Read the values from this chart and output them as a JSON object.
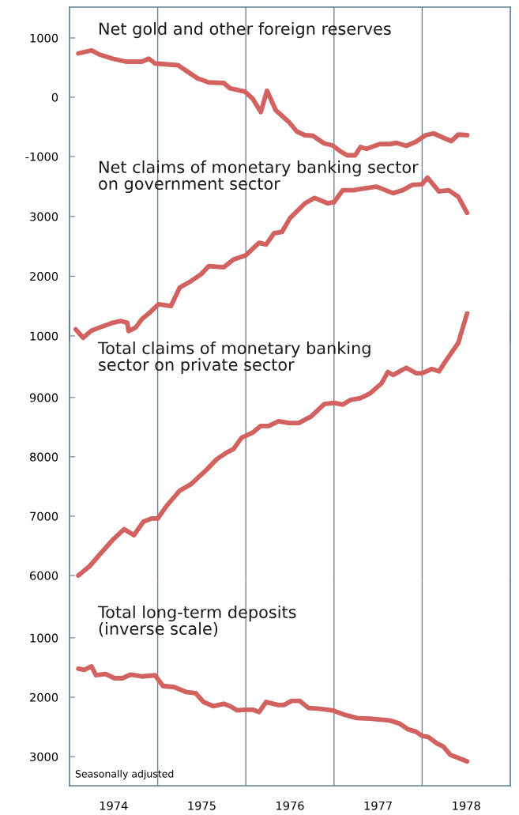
{
  "chart_data": [
    {
      "type": "line",
      "title": "Net gold and other foreign reserves",
      "xlim": [
        1974,
        1979
      ],
      "ylim": [
        -1200,
        1520
      ],
      "yticks": [
        -1000,
        0,
        1000
      ],
      "tick_labels": "y",
      "grid": false,
      "legend": false,
      "ref_lines": [
        {
          "axis": "x",
          "value": 1975,
          "color": "#6d8799"
        },
        {
          "axis": "x",
          "value": 1976,
          "color": "#6d8799"
        },
        {
          "axis": "x",
          "value": 1977,
          "color": "#6d8799"
        },
        {
          "axis": "x",
          "value": 1978,
          "color": "#6d8799"
        }
      ],
      "series": [
        {
          "color": "#d2625f",
          "x": [
            1974.1,
            1974.25,
            1974.34,
            1974.49,
            1974.64,
            1974.82,
            1974.9,
            1974.97,
            1975.23,
            1975.45,
            1975.58,
            1975.75,
            1975.82,
            1975.99,
            1976.08,
            1976.17,
            1976.24,
            1976.34,
            1976.49,
            1976.58,
            1976.67,
            1976.76,
            1976.89,
            1976.98,
            1977.08,
            1977.15,
            1977.24,
            1977.3,
            1977.37,
            1977.52,
            1977.63,
            1977.71,
            1977.82,
            1977.93,
            1978.04,
            1978.13,
            1978.22,
            1978.33,
            1978.41,
            1978.51
          ],
          "values": [
            740,
            790,
            720,
            650,
            600,
            600,
            650,
            570,
            540,
            320,
            250,
            240,
            150,
            95,
            -30,
            -250,
            110,
            -220,
            -420,
            -580,
            -640,
            -650,
            -780,
            -810,
            -920,
            -980,
            -980,
            -840,
            -870,
            -790,
            -790,
            -770,
            -820,
            -750,
            -640,
            -610,
            -670,
            -740,
            -630,
            -640
          ]
        }
      ]
    },
    {
      "type": "line",
      "title": "Net claims of monetary banking sector\non government sector",
      "xlim": [
        1974,
        1979
      ],
      "ylim": [
        900,
        3800
      ],
      "yticks": [
        1000,
        2000,
        3000
      ],
      "tick_labels": "y",
      "grid": false,
      "legend": false,
      "ref_lines": [
        {
          "axis": "x",
          "value": 1975,
          "color": "#6d8799"
        },
        {
          "axis": "x",
          "value": 1976,
          "color": "#6d8799"
        },
        {
          "axis": "x",
          "value": 1977,
          "color": "#6d8799"
        },
        {
          "axis": "x",
          "value": 1978,
          "color": "#6d8799"
        }
      ],
      "series": [
        {
          "color": "#d2625f",
          "x": [
            1974.07,
            1974.155,
            1974.25,
            1974.34,
            1974.49,
            1974.58,
            1974.655,
            1974.67,
            1974.75,
            1974.82,
            1974.91,
            1975.01,
            1975.15,
            1975.25,
            1975.38,
            1975.49,
            1975.58,
            1975.75,
            1975.86,
            1976.0,
            1976.15,
            1976.23,
            1976.32,
            1976.41,
            1976.5,
            1976.67,
            1976.78,
            1976.93,
            1977.0,
            1977.1,
            1977.22,
            1977.34,
            1977.48,
            1977.67,
            1977.78,
            1977.89,
            1978.0,
            1978.06,
            1978.19,
            1978.3,
            1978.41,
            1978.51
          ],
          "values": [
            1110,
            970,
            1090,
            1140,
            1220,
            1250,
            1220,
            1080,
            1140,
            1280,
            1390,
            1530,
            1500,
            1810,
            1920,
            2030,
            2170,
            2150,
            2280,
            2350,
            2560,
            2530,
            2720,
            2740,
            2970,
            3220,
            3310,
            3220,
            3240,
            3440,
            3440,
            3470,
            3500,
            3390,
            3440,
            3530,
            3540,
            3650,
            3420,
            3440,
            3330,
            3060
          ]
        }
      ]
    },
    {
      "type": "line",
      "title": "Total claims of monetary banking\nsector on private sector",
      "xlim": [
        1974,
        1979
      ],
      "ylim": [
        5900,
        10450
      ],
      "yticks": [
        6000,
        7000,
        8000,
        9000
      ],
      "tick_labels": "y",
      "grid": false,
      "legend": false,
      "ref_lines": [
        {
          "axis": "x",
          "value": 1975,
          "color": "#6d8799"
        },
        {
          "axis": "x",
          "value": 1976,
          "color": "#6d8799"
        },
        {
          "axis": "x",
          "value": 1977,
          "color": "#6d8799"
        },
        {
          "axis": "x",
          "value": 1978,
          "color": "#6d8799"
        }
      ],
      "series": [
        {
          "color": "#d2625f",
          "x": [
            1974.1,
            1974.23,
            1974.34,
            1974.49,
            1974.62,
            1974.73,
            1974.84,
            1974.93,
            1975.0,
            1975.1,
            1975.25,
            1975.38,
            1975.56,
            1975.67,
            1975.78,
            1975.86,
            1975.95,
            1976.08,
            1976.17,
            1976.26,
            1976.37,
            1976.49,
            1976.6,
            1976.74,
            1976.89,
            1977.0,
            1977.1,
            1977.19,
            1977.3,
            1977.41,
            1977.54,
            1977.61,
            1977.67,
            1977.82,
            1977.93,
            1978.0,
            1978.11,
            1978.19,
            1978.26,
            1978.33,
            1978.41,
            1978.51
          ],
          "values": [
            6000,
            6160,
            6350,
            6600,
            6780,
            6680,
            6910,
            6960,
            6960,
            7170,
            7430,
            7540,
            7790,
            7960,
            8070,
            8130,
            8320,
            8410,
            8520,
            8520,
            8600,
            8570,
            8570,
            8680,
            8890,
            8910,
            8880,
            8960,
            8990,
            9070,
            9240,
            9430,
            9380,
            9500,
            9410,
            9410,
            9480,
            9440,
            9600,
            9750,
            9920,
            10420
          ]
        }
      ]
    },
    {
      "type": "line",
      "title": "Total long-term deposits\n(inverse scale)",
      "annotations": [
        "Seasonally adjusted"
      ],
      "xlim": [
        1974,
        1979
      ],
      "xticks": [
        {
          "value": 1974.5,
          "label": "1974"
        },
        {
          "value": 1975.5,
          "label": "1975"
        },
        {
          "value": 1976.5,
          "label": "1976"
        },
        {
          "value": 1977.5,
          "label": "1977"
        },
        {
          "value": 1978.5,
          "label": "1978"
        }
      ],
      "ylim": [
        3490,
        50
      ],
      "yticks": [
        1000,
        2000,
        3000
      ],
      "grid": false,
      "legend": false,
      "ref_lines": [
        {
          "axis": "x",
          "value": 1975,
          "color": "#6d8799"
        },
        {
          "axis": "x",
          "value": 1976,
          "color": "#6d8799"
        },
        {
          "axis": "x",
          "value": 1977,
          "color": "#6d8799"
        },
        {
          "axis": "x",
          "value": 1978,
          "color": "#6d8799"
        }
      ],
      "series": [
        {
          "color": "#d2625f",
          "x": [
            1974.1,
            1974.17,
            1974.25,
            1974.3,
            1974.41,
            1974.51,
            1974.6,
            1974.69,
            1974.82,
            1974.97,
            1975.06,
            1975.19,
            1975.32,
            1975.43,
            1975.52,
            1975.63,
            1975.75,
            1975.82,
            1975.9,
            1975.99,
            1976.08,
            1976.15,
            1976.23,
            1976.37,
            1976.43,
            1976.52,
            1976.61,
            1976.71,
            1976.82,
            1976.98,
            1977.11,
            1977.26,
            1977.41,
            1977.63,
            1977.74,
            1977.84,
            1977.93,
            1978.0,
            1978.07,
            1978.17,
            1978.24,
            1978.32,
            1978.41,
            1978.51
          ],
          "values": [
            1520,
            1540,
            1480,
            1630,
            1610,
            1680,
            1680,
            1620,
            1650,
            1630,
            1810,
            1830,
            1910,
            1930,
            2080,
            2150,
            2110,
            2150,
            2220,
            2210,
            2210,
            2250,
            2080,
            2130,
            2130,
            2060,
            2060,
            2180,
            2190,
            2220,
            2290,
            2350,
            2360,
            2390,
            2440,
            2540,
            2580,
            2650,
            2670,
            2780,
            2830,
            2970,
            3020,
            3080
          ]
        }
      ]
    }
  ]
}
